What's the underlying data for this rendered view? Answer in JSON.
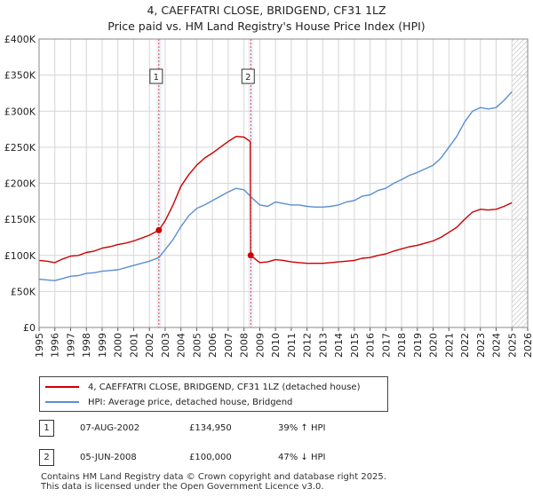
{
  "title": "4, CAEFFATRI CLOSE, BRIDGEND, CF31 1LZ",
  "subtitle": "Price paid vs. HM Land Registry's House Price Index (HPI)",
  "legend": {
    "property_label": "4, CAEFFATRI CLOSE, BRIDGEND, CF31 1LZ (detached house)",
    "hpi_label": "HPI: Average price, detached house, Bridgend"
  },
  "colors": {
    "property": "#cc0000",
    "hpi": "#5b8fd0",
    "grid": "#d6d6d6",
    "shade": "#dbe6f5"
  },
  "transactions": [
    {
      "num": "1",
      "date": "07-AUG-2002",
      "price": "£134,950",
      "hpi_change": "39% ↑ HPI",
      "year": 2002.6,
      "value": 134950
    },
    {
      "num": "2",
      "date": "05-JUN-2008",
      "price": "£100,000",
      "hpi_change": "47% ↓ HPI",
      "year": 2008.43,
      "value": 100000
    }
  ],
  "footer": {
    "line1": "Contains HM Land Registry data © Crown copyright and database right 2025.",
    "line2": "This data is licensed under the Open Government Licence v3.0."
  },
  "chart_data": {
    "type": "line",
    "title": "4, CAEFFATRI CLOSE, BRIDGEND, CF31 1LZ",
    "xlim": [
      1995,
      2026
    ],
    "ylim": [
      0,
      400000
    ],
    "yticks": [
      0,
      50000,
      100000,
      150000,
      200000,
      250000,
      300000,
      350000,
      400000
    ],
    "ytick_labels": [
      "£0",
      "£50K",
      "£100K",
      "£150K",
      "£200K",
      "£250K",
      "£300K",
      "£350K",
      "£400K"
    ],
    "xticks": [
      1995,
      1996,
      1997,
      1998,
      1999,
      2000,
      2001,
      2002,
      2003,
      2004,
      2005,
      2006,
      2007,
      2008,
      2009,
      2010,
      2011,
      2012,
      2013,
      2014,
      2015,
      2016,
      2017,
      2018,
      2019,
      2020,
      2021,
      2022,
      2023,
      2024,
      2025,
      2026
    ],
    "forecast_from": 2025.0,
    "series": [
      {
        "name": "4, CAEFFATRI CLOSE, BRIDGEND, CF31 1LZ (detached house)",
        "color": "#cc0000",
        "points": [
          [
            1995.0,
            93000
          ],
          [
            1995.5,
            92000
          ],
          [
            1996.0,
            90000
          ],
          [
            1996.5,
            95000
          ],
          [
            1997.0,
            99000
          ],
          [
            1997.5,
            100000
          ],
          [
            1998.0,
            104000
          ],
          [
            1998.5,
            106000
          ],
          [
            1999.0,
            110000
          ],
          [
            1999.5,
            112000
          ],
          [
            2000.0,
            115000
          ],
          [
            2000.5,
            117000
          ],
          [
            2001.0,
            120000
          ],
          [
            2001.5,
            124000
          ],
          [
            2002.0,
            128000
          ],
          [
            2002.6,
            134950
          ],
          [
            2003.0,
            148000
          ],
          [
            2003.5,
            170000
          ],
          [
            2004.0,
            196000
          ],
          [
            2004.5,
            212000
          ],
          [
            2005.0,
            225000
          ],
          [
            2005.5,
            235000
          ],
          [
            2006.0,
            242000
          ],
          [
            2006.5,
            250000
          ],
          [
            2007.0,
            258000
          ],
          [
            2007.5,
            265000
          ],
          [
            2008.0,
            264000
          ],
          [
            2008.4,
            258000
          ],
          [
            2008.43,
            100000
          ],
          [
            2009.0,
            90000
          ],
          [
            2009.5,
            91000
          ],
          [
            2010.0,
            94000
          ],
          [
            2010.5,
            93000
          ],
          [
            2011.0,
            91000
          ],
          [
            2011.5,
            90000
          ],
          [
            2012.0,
            89000
          ],
          [
            2012.5,
            89000
          ],
          [
            2013.0,
            89000
          ],
          [
            2013.5,
            90000
          ],
          [
            2014.0,
            91000
          ],
          [
            2014.5,
            92000
          ],
          [
            2015.0,
            93000
          ],
          [
            2015.5,
            96000
          ],
          [
            2016.0,
            97000
          ],
          [
            2016.5,
            100000
          ],
          [
            2017.0,
            102000
          ],
          [
            2017.5,
            106000
          ],
          [
            2018.0,
            109000
          ],
          [
            2018.5,
            112000
          ],
          [
            2019.0,
            114000
          ],
          [
            2019.5,
            117000
          ],
          [
            2020.0,
            120000
          ],
          [
            2020.5,
            125000
          ],
          [
            2021.0,
            132000
          ],
          [
            2021.5,
            139000
          ],
          [
            2022.0,
            150000
          ],
          [
            2022.5,
            160000
          ],
          [
            2023.0,
            164000
          ],
          [
            2023.5,
            163000
          ],
          [
            2024.0,
            164000
          ],
          [
            2024.5,
            168000
          ],
          [
            2025.0,
            173000
          ]
        ]
      },
      {
        "name": "HPI: Average price, detached house, Bridgend",
        "color": "#5b8fd0",
        "points": [
          [
            1995.0,
            67000
          ],
          [
            1995.5,
            66000
          ],
          [
            1996.0,
            65000
          ],
          [
            1996.5,
            68000
          ],
          [
            1997.0,
            71000
          ],
          [
            1997.5,
            72000
          ],
          [
            1998.0,
            75000
          ],
          [
            1998.5,
            76000
          ],
          [
            1999.0,
            78000
          ],
          [
            1999.5,
            79000
          ],
          [
            2000.0,
            80000
          ],
          [
            2000.5,
            83000
          ],
          [
            2001.0,
            86000
          ],
          [
            2001.5,
            89000
          ],
          [
            2002.0,
            92000
          ],
          [
            2002.6,
            97000
          ],
          [
            2003.0,
            108000
          ],
          [
            2003.5,
            122000
          ],
          [
            2004.0,
            140000
          ],
          [
            2004.5,
            155000
          ],
          [
            2005.0,
            165000
          ],
          [
            2005.5,
            170000
          ],
          [
            2006.0,
            176000
          ],
          [
            2006.5,
            182000
          ],
          [
            2007.0,
            188000
          ],
          [
            2007.5,
            193000
          ],
          [
            2008.0,
            191000
          ],
          [
            2008.5,
            180000
          ],
          [
            2009.0,
            170000
          ],
          [
            2009.5,
            168000
          ],
          [
            2010.0,
            174000
          ],
          [
            2010.5,
            172000
          ],
          [
            2011.0,
            170000
          ],
          [
            2011.5,
            170000
          ],
          [
            2012.0,
            168000
          ],
          [
            2012.5,
            167000
          ],
          [
            2013.0,
            167000
          ],
          [
            2013.5,
            168000
          ],
          [
            2014.0,
            170000
          ],
          [
            2014.5,
            174000
          ],
          [
            2015.0,
            176000
          ],
          [
            2015.5,
            182000
          ],
          [
            2016.0,
            184000
          ],
          [
            2016.5,
            190000
          ],
          [
            2017.0,
            193000
          ],
          [
            2017.5,
            200000
          ],
          [
            2018.0,
            205000
          ],
          [
            2018.5,
            211000
          ],
          [
            2019.0,
            215000
          ],
          [
            2019.5,
            220000
          ],
          [
            2020.0,
            225000
          ],
          [
            2020.5,
            235000
          ],
          [
            2021.0,
            250000
          ],
          [
            2021.5,
            265000
          ],
          [
            2022.0,
            285000
          ],
          [
            2022.5,
            300000
          ],
          [
            2023.0,
            305000
          ],
          [
            2023.5,
            303000
          ],
          [
            2024.0,
            305000
          ],
          [
            2024.5,
            315000
          ],
          [
            2025.0,
            327000
          ]
        ]
      }
    ]
  }
}
